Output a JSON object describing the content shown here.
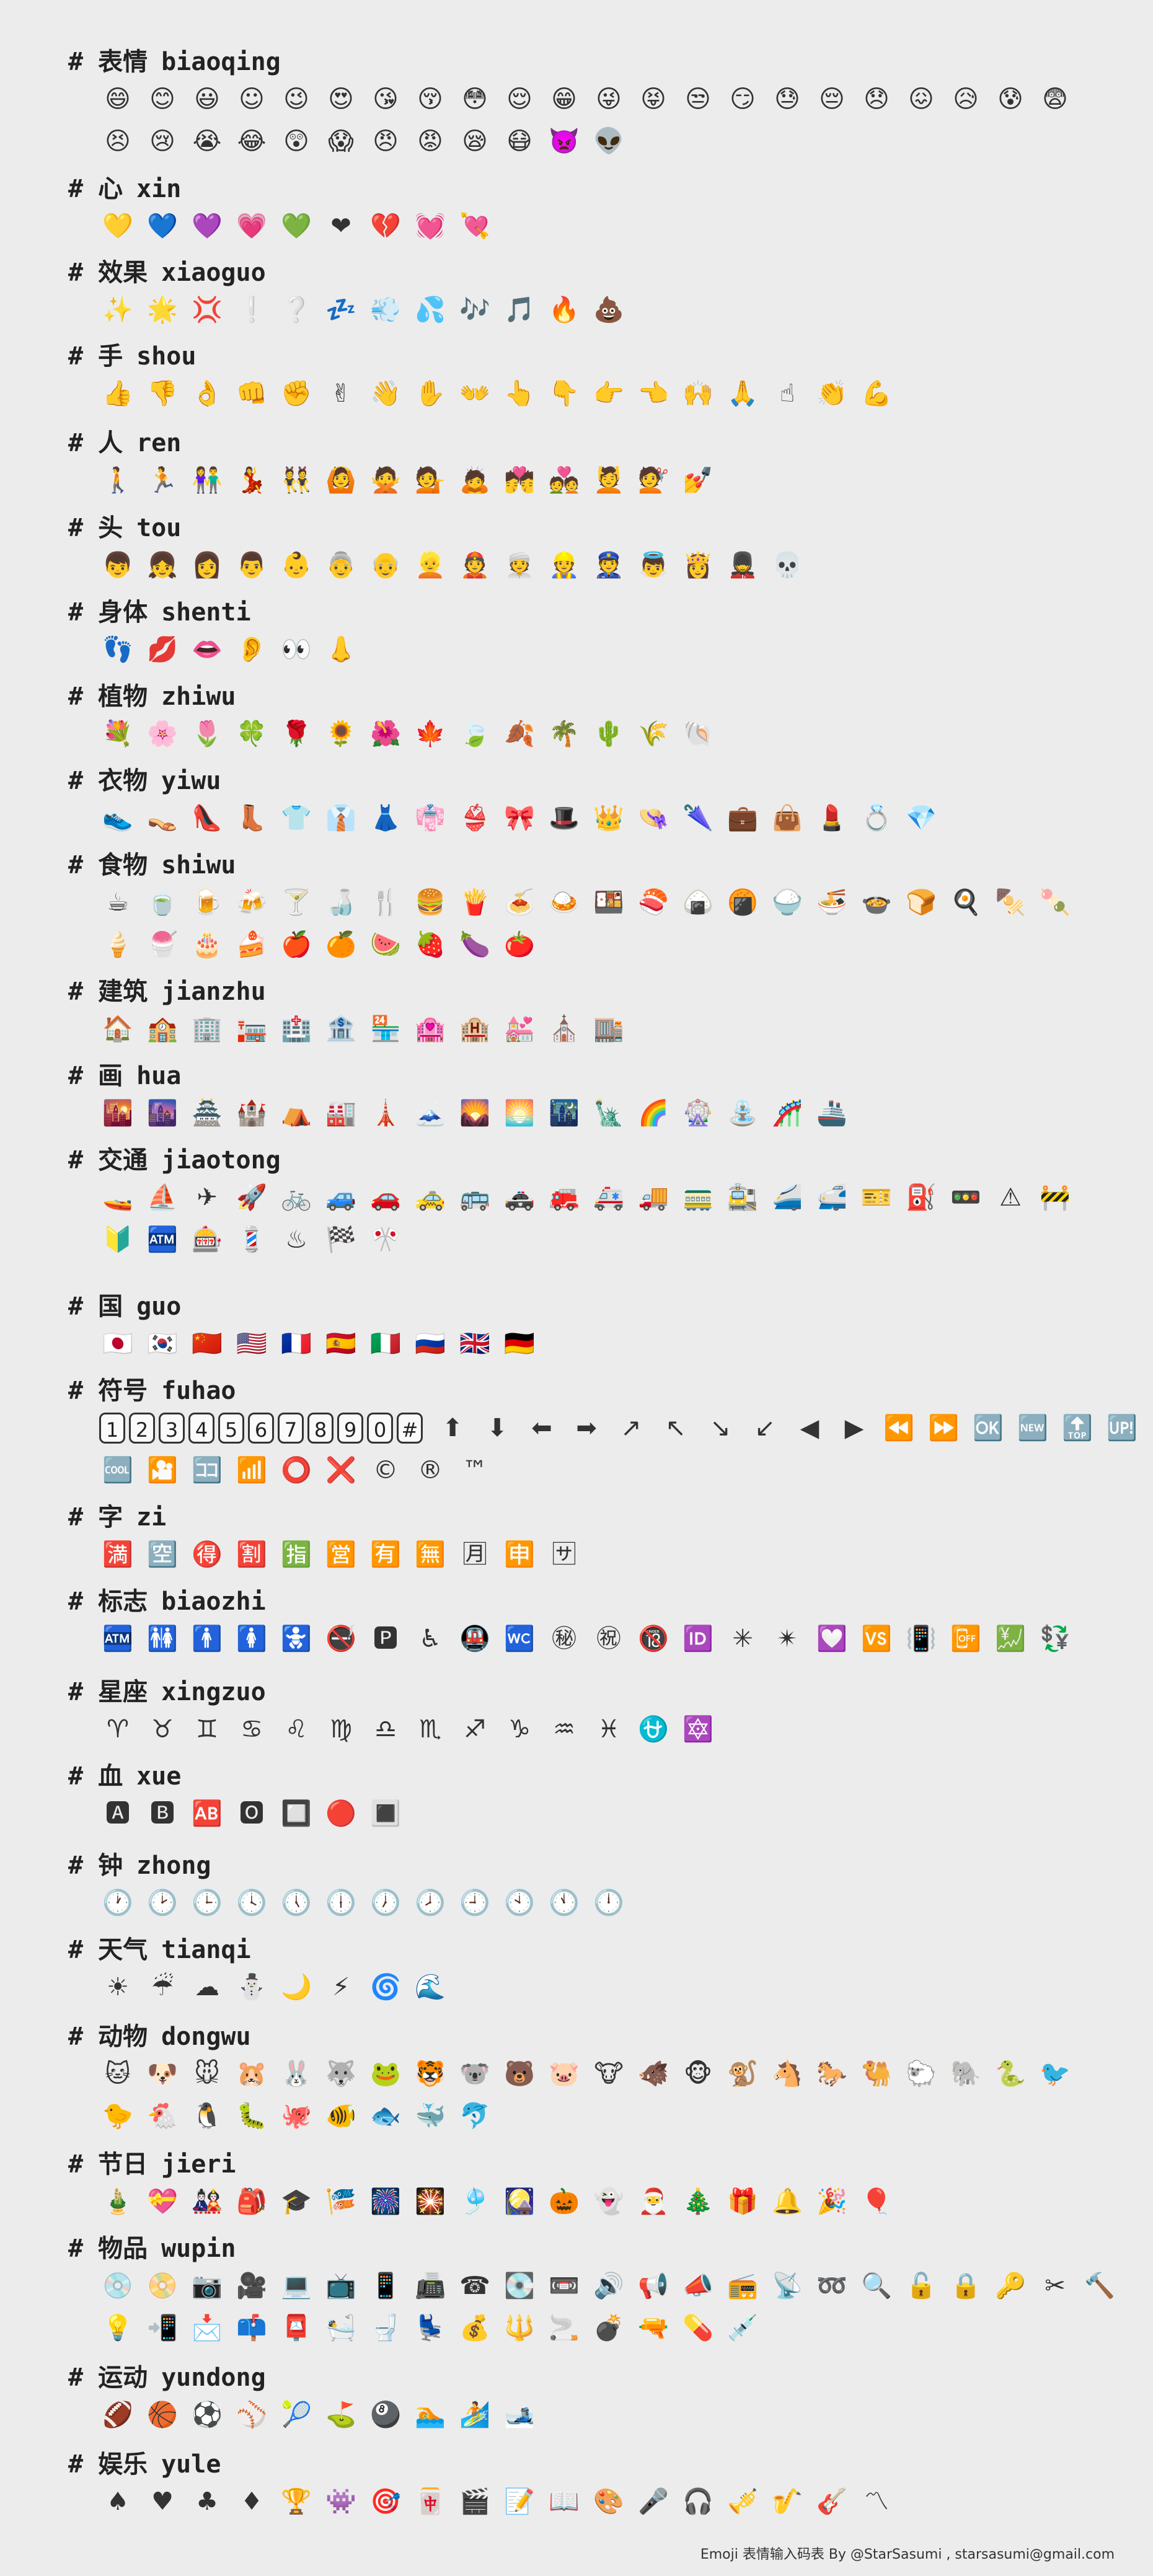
{
  "sections": [
    {
      "hash": "#",
      "zh": "表情",
      "py": "biaoqing",
      "rows": [
        [
          "😄",
          "😊",
          "😃",
          "☺",
          "😉",
          "😍",
          "😘",
          "😚",
          "😳",
          "😌",
          "😁",
          "😜",
          "😝",
          "😒",
          "😏",
          "😓",
          "😔",
          "😞",
          "😖",
          "😥",
          "😰",
          "😨"
        ],
        [
          "😣",
          "😢",
          "😭",
          "😂",
          "😲",
          "😱",
          "😠",
          "😡",
          "😪",
          "😷",
          "👿",
          "👽"
        ]
      ]
    },
    {
      "hash": "#",
      "zh": "心",
      "py": "xin",
      "rows": [
        [
          "💛",
          "💙",
          "💜",
          "💗",
          "💚",
          "❤",
          "💔",
          "💓",
          "💘"
        ]
      ]
    },
    {
      "hash": "#",
      "zh": "效果",
      "py": "xiaoguo",
      "rows": [
        [
          "✨",
          "🌟",
          "💢",
          "❕",
          "❔",
          "💤",
          "💨",
          "💦",
          "🎶",
          "🎵",
          "🔥",
          "💩"
        ]
      ]
    },
    {
      "hash": "#",
      "zh": "手",
      "py": "shou",
      "rows": [
        [
          "👍",
          "👎",
          "👌",
          "👊",
          "✊",
          "✌",
          "👋",
          "✋",
          "👐",
          "👆",
          "👇",
          "👉",
          "👈",
          "🙌",
          "🙏",
          "☝",
          "👏",
          "💪"
        ]
      ]
    },
    {
      "hash": "#",
      "zh": "人",
      "py": "ren",
      "rows": [
        [
          "🚶",
          "🏃",
          "👫",
          "💃",
          "👯",
          "🙆",
          "🙅",
          "💁",
          "🙇",
          "💏",
          "💑",
          "💆",
          "💇",
          "💅"
        ]
      ]
    },
    {
      "hash": "#",
      "zh": "头",
      "py": "tou",
      "rows": [
        [
          "👦",
          "👧",
          "👩",
          "👨",
          "👶",
          "👵",
          "👴",
          "👱",
          "👲",
          "👳",
          "👷",
          "👮",
          "👼",
          "👸",
          "💂",
          "💀"
        ]
      ]
    },
    {
      "hash": "#",
      "zh": "身体",
      "py": "shenti",
      "rows": [
        [
          "👣",
          "💋",
          "👄",
          "👂",
          "👀",
          "👃"
        ]
      ]
    },
    {
      "hash": "#",
      "zh": "植物",
      "py": "zhiwu",
      "rows": [
        [
          "💐",
          "🌸",
          "🌷",
          "🍀",
          "🌹",
          "🌻",
          "🌺",
          "🍁",
          "🍃",
          "🍂",
          "🌴",
          "🌵",
          "🌾",
          "🐚"
        ]
      ]
    },
    {
      "hash": "#",
      "zh": "衣物",
      "py": "yiwu",
      "rows": [
        [
          "👟",
          "👡",
          "👠",
          "👢",
          "👕",
          "👔",
          "👗",
          "👘",
          "👙",
          "🎀",
          "🎩",
          "👑",
          "👒",
          "🌂",
          "💼",
          "👜",
          "💄",
          "💍",
          "💎"
        ]
      ]
    },
    {
      "hash": "#",
      "zh": "食物",
      "py": "shiwu",
      "rows": [
        [
          "☕",
          "🍵",
          "🍺",
          "🍻",
          "🍸",
          "🍶",
          "🍴",
          "🍔",
          "🍟",
          "🍝",
          "🍛",
          "🍱",
          "🍣",
          "🍙",
          "🍘",
          "🍚",
          "🍜",
          "🍲",
          "🍞",
          "🍳",
          "🍢",
          "🍡"
        ],
        [
          "🍦",
          "🍧",
          "🎂",
          "🍰",
          "🍎",
          "🍊",
          "🍉",
          "🍓",
          "🍆",
          "🍅"
        ]
      ]
    },
    {
      "hash": "#",
      "zh": "建筑",
      "py": "jianzhu",
      "rows": [
        [
          "🏠",
          "🏫",
          "🏢",
          "🏣",
          "🏥",
          "🏦",
          "🏪",
          "🏩",
          "🏨",
          "💒",
          "⛪",
          "🏬"
        ]
      ]
    },
    {
      "hash": "#",
      "zh": "画",
      "py": "hua",
      "rows": [
        [
          "🌇",
          "🌆",
          "🏯",
          "🏰",
          "⛺",
          "🏭",
          "🗼",
          "🗻",
          "🌄",
          "🌅",
          "🌃",
          "🗽",
          "🌈",
          "🎡",
          "⛲",
          "🎢",
          "🚢"
        ]
      ]
    },
    {
      "hash": "#",
      "zh": "交通",
      "py": "jiaotong",
      "rows": [
        [
          "🚤",
          "⛵",
          "✈",
          "🚀",
          "🚲",
          "🚙",
          "🚗",
          "🚕",
          "🚌",
          "🚓",
          "🚒",
          "🚑",
          "🚚",
          "🚃",
          "🚉",
          "🚄",
          "🚅",
          "🎫",
          "⛽",
          "🚥",
          "⚠",
          "🚧"
        ],
        [
          "🔰",
          "🏧",
          "🎰",
          "💈",
          "♨",
          "🏁",
          "🎌"
        ]
      ]
    },
    {
      "hash": "#",
      "zh": "国",
      "py": "guo",
      "rows": [
        [
          "🇯🇵",
          "🇰🇷",
          "🇨🇳",
          "🇺🇸",
          "🇫🇷",
          "🇪🇸",
          "🇮🇹",
          "🇷🇺",
          "🇬🇧",
          "🇩🇪"
        ]
      ]
    },
    {
      "hash": "#",
      "zh": "符号",
      "py": "fuhao",
      "keycaps": [
        "1",
        "2",
        "3",
        "4",
        "5",
        "6",
        "7",
        "8",
        "9",
        "0",
        "#"
      ],
      "rows": [
        [
          "⬆",
          "⬇",
          "⬅",
          "➡",
          "↗",
          "↖",
          "↘",
          "↙",
          "◀",
          "▶",
          "⏪",
          "⏩",
          "🆗",
          "🆕",
          "🔝",
          "🆙"
        ],
        [
          "🆒",
          "🎦",
          "🈁",
          "📶",
          "⭕",
          "❌",
          "©",
          "®",
          "™"
        ]
      ]
    },
    {
      "hash": "#",
      "zh": "字",
      "py": "zi",
      "rows": [
        [
          "🈵",
          "🈳",
          "🉐",
          "🈹",
          "🈯",
          "🈺",
          "🈶",
          "🈚",
          "🈷",
          "🈸",
          "🈂"
        ]
      ]
    },
    {
      "hash": "#",
      "zh": "标志",
      "py": "biaozhi",
      "rows": [
        [
          "🏧",
          "🚻",
          "🚹",
          "🚺",
          "🚼",
          "🚭",
          "🅿",
          "♿",
          "🚇",
          "🚾",
          "㊙",
          "㊗",
          "🔞",
          "🆔",
          "✳",
          "✴",
          "💟",
          "🆚",
          "📳",
          "📴",
          "💹",
          "💱"
        ]
      ]
    },
    {
      "hash": "#",
      "zh": "星座",
      "py": "xingzuo",
      "rows": [
        [
          "♈",
          "♉",
          "♊",
          "♋",
          "♌",
          "♍",
          "♎",
          "♏",
          "♐",
          "♑",
          "♒",
          "♓",
          "⛎",
          "🔯"
        ]
      ]
    },
    {
      "hash": "#",
      "zh": "血",
      "py": "xue",
      "rows": [
        [
          "🅰",
          "🅱",
          "🆎",
          "🅾",
          "🔲",
          "🔴",
          "🔳"
        ]
      ]
    },
    {
      "hash": "#",
      "zh": "钟",
      "py": "zhong",
      "rows": [
        [
          "🕐",
          "🕑",
          "🕒",
          "🕓",
          "🕔",
          "🕕",
          "🕖",
          "🕗",
          "🕘",
          "🕙",
          "🕚",
          "🕛"
        ]
      ]
    },
    {
      "hash": "#",
      "zh": "天气",
      "py": "tianqi",
      "rows": [
        [
          "☀",
          "☔",
          "☁",
          "⛄",
          "🌙",
          "⚡",
          "🌀",
          "🌊"
        ]
      ]
    },
    {
      "hash": "#",
      "zh": "动物",
      "py": "dongwu",
      "rows": [
        [
          "🐱",
          "🐶",
          "🐭",
          "🐹",
          "🐰",
          "🐺",
          "🐸",
          "🐯",
          "🐨",
          "🐻",
          "🐷",
          "🐮",
          "🐗",
          "🐵",
          "🐒",
          "🐴",
          "🐎",
          "🐫",
          "🐑",
          "🐘",
          "🐍",
          "🐦"
        ],
        [
          "🐤",
          "🐔",
          "🐧",
          "🐛",
          "🐙",
          "🐠",
          "🐟",
          "🐳",
          "🐬"
        ]
      ]
    },
    {
      "hash": "#",
      "zh": "节日",
      "py": "jieri",
      "rows": [
        [
          "🎍",
          "💝",
          "🎎",
          "🎒",
          "🎓",
          "🎏",
          "🎆",
          "🎇",
          "🎐",
          "🎑",
          "🎃",
          "👻",
          "🎅",
          "🎄",
          "🎁",
          "🔔",
          "🎉",
          "🎈"
        ]
      ]
    },
    {
      "hash": "#",
      "zh": "物品",
      "py": "wupin",
      "rows": [
        [
          "💿",
          "📀",
          "📷",
          "🎥",
          "💻",
          "📺",
          "📱",
          "📠",
          "☎",
          "💽",
          "📼",
          "🔊",
          "📢",
          "📣",
          "📻",
          "📡",
          "➿",
          "🔍",
          "🔓",
          "🔒",
          "🔑",
          "✂",
          "🔨"
        ],
        [
          "💡",
          "📲",
          "📩",
          "📫",
          "📮",
          "🛀",
          "🚽",
          "💺",
          "💰",
          "🔱",
          "🚬",
          "💣",
          "🔫",
          "💊",
          "💉"
        ]
      ]
    },
    {
      "hash": "#",
      "zh": "运动",
      "py": "yundong",
      "rows": [
        [
          "🏈",
          "🏀",
          "⚽",
          "⚾",
          "🎾",
          "⛳",
          "🎱",
          "🏊",
          "🏄",
          "🎿"
        ]
      ]
    },
    {
      "hash": "#",
      "zh": "娱乐",
      "py": "yule",
      "rows": [
        [
          "♠",
          "♥",
          "♣",
          "♦",
          "🏆",
          "👾",
          "🎯",
          "🀄",
          "🎬",
          "📝",
          "📖",
          "🎨",
          "🎤",
          "🎧",
          "🎺",
          "🎷",
          "🎸",
          "〽"
        ]
      ]
    }
  ],
  "footer": "Emoji 表情输入码表 By @StarSasumi , starsasumi@gmail.com"
}
